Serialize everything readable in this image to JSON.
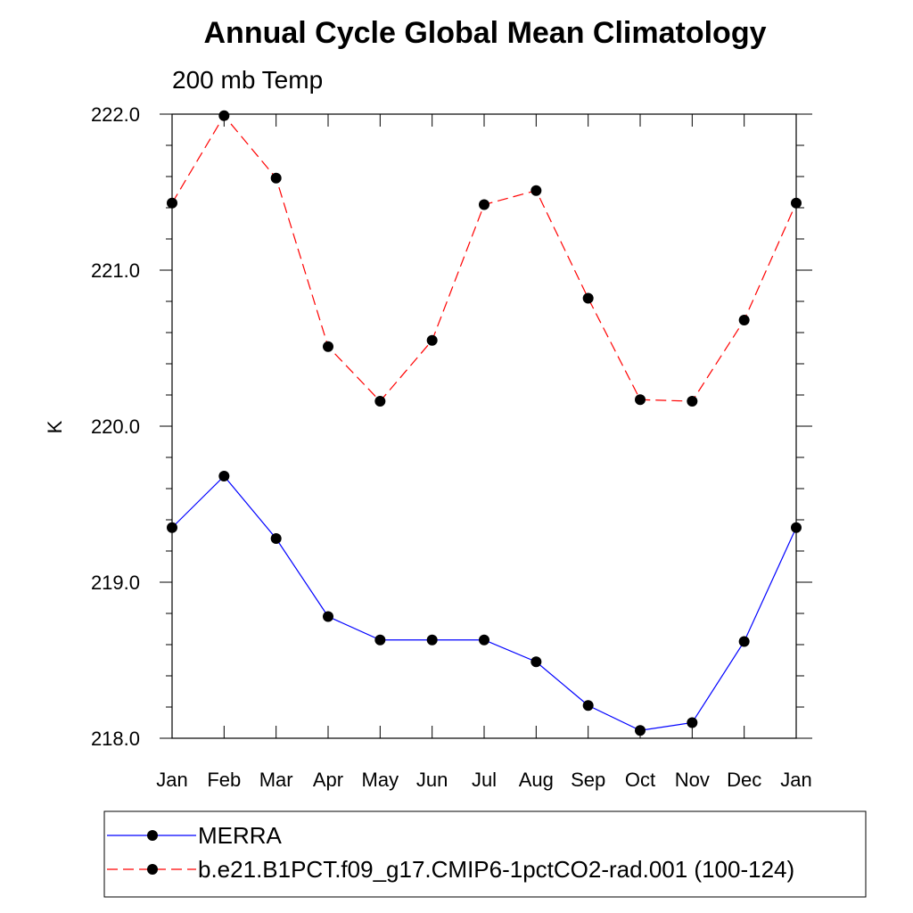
{
  "chart_data": {
    "type": "line",
    "title": "Annual Cycle Global Mean Climatology",
    "subtitle": "200 mb Temp",
    "xlabel": "",
    "ylabel": "K",
    "categories": [
      "Jan",
      "Feb",
      "Mar",
      "Apr",
      "May",
      "Jun",
      "Jul",
      "Aug",
      "Sep",
      "Oct",
      "Nov",
      "Dec",
      "Jan"
    ],
    "ylim": [
      218.0,
      222.0
    ],
    "yticks": [
      "218.0",
      "219.0",
      "220.0",
      "221.0",
      "222.0"
    ],
    "grid": false,
    "legend_position": "bottom",
    "series": [
      {
        "name": "MERRA",
        "color": "#0000ff",
        "line_style": "solid",
        "marker": "filled-circle",
        "values": [
          219.35,
          219.68,
          219.28,
          218.78,
          218.63,
          218.63,
          218.63,
          218.49,
          218.21,
          218.05,
          218.1,
          218.62,
          219.35
        ]
      },
      {
        "name": "b.e21.B1PCT.f09_g17.CMIP6-1pctCO2-rad.001 (100-124)",
        "color": "#ff0000",
        "line_style": "dashed",
        "marker": "filled-circle",
        "values": [
          221.43,
          221.99,
          221.59,
          220.51,
          220.16,
          220.55,
          221.42,
          221.51,
          220.82,
          220.17,
          220.16,
          220.68,
          221.43
        ]
      }
    ]
  }
}
